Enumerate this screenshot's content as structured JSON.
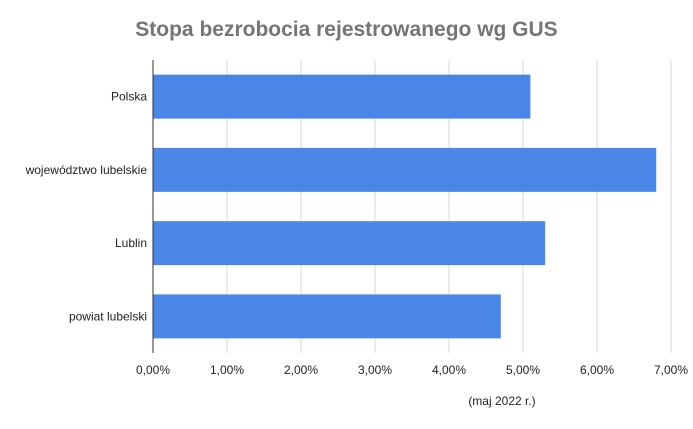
{
  "chart_data": {
    "type": "bar",
    "orientation": "horizontal",
    "title": "Stopa bezrobocia rejestrowanego wg GUS",
    "xlabel": "(maj 2022 r.)",
    "ylabel": "",
    "categories": [
      "Polska",
      "województwo lubelskie",
      "Lublin",
      "powiat lubelski"
    ],
    "values": [
      5.1,
      6.8,
      5.3,
      4.7
    ],
    "xlim": [
      0,
      7
    ],
    "ticks": [
      "0,00%",
      "1,00%",
      "2,00%",
      "3,00%",
      "4,00%",
      "5,00%",
      "6,00%",
      "7,00%"
    ],
    "grid": true,
    "legend": "none",
    "colors": {
      "bar": "#4a86e8",
      "grid": "#d9d9d9",
      "axis": "#333333"
    }
  }
}
